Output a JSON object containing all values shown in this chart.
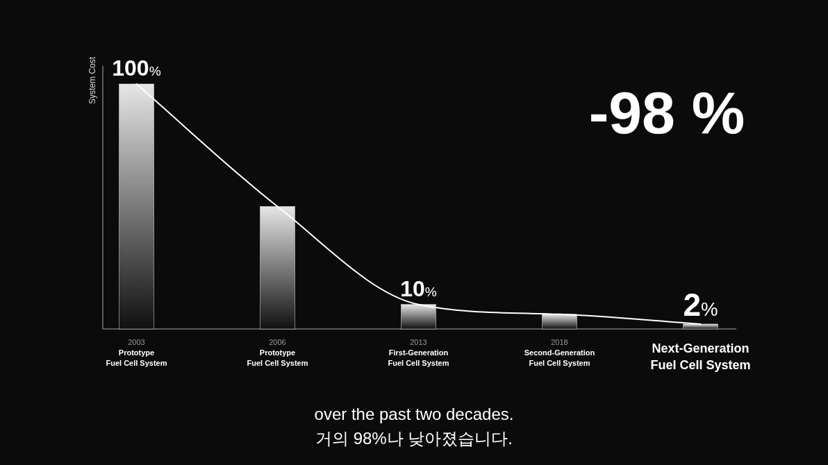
{
  "chart_data": {
    "type": "bar",
    "ylabel": "System Cost",
    "categories": [
      "2003\nPrototype\nFuel Cell System",
      "2006\nPrototype\nFuel Cell System",
      "2013\nFirst-Generation\nFuel Cell System",
      "2018\nSecond-Generation\nFuel Cell System",
      "Next-Generation\nFuel Cell System"
    ],
    "series": [
      {
        "color": "#e6e6e6",
        "values": [
          100,
          50,
          10,
          6,
          2
        ],
        "value_labels": [
          "100%",
          null,
          "10%",
          null,
          "2%"
        ]
      },
      {
        "type": "line",
        "color": "#ffffff",
        "values": [
          100,
          50,
          10,
          6,
          2
        ]
      }
    ],
    "ylim": [
      0,
      100
    ],
    "tick_labels": "x",
    "annotations": [
      "-98 %",
      "over the past two decades.",
      "거의 98%나 낮아졌습니다."
    ]
  }
}
